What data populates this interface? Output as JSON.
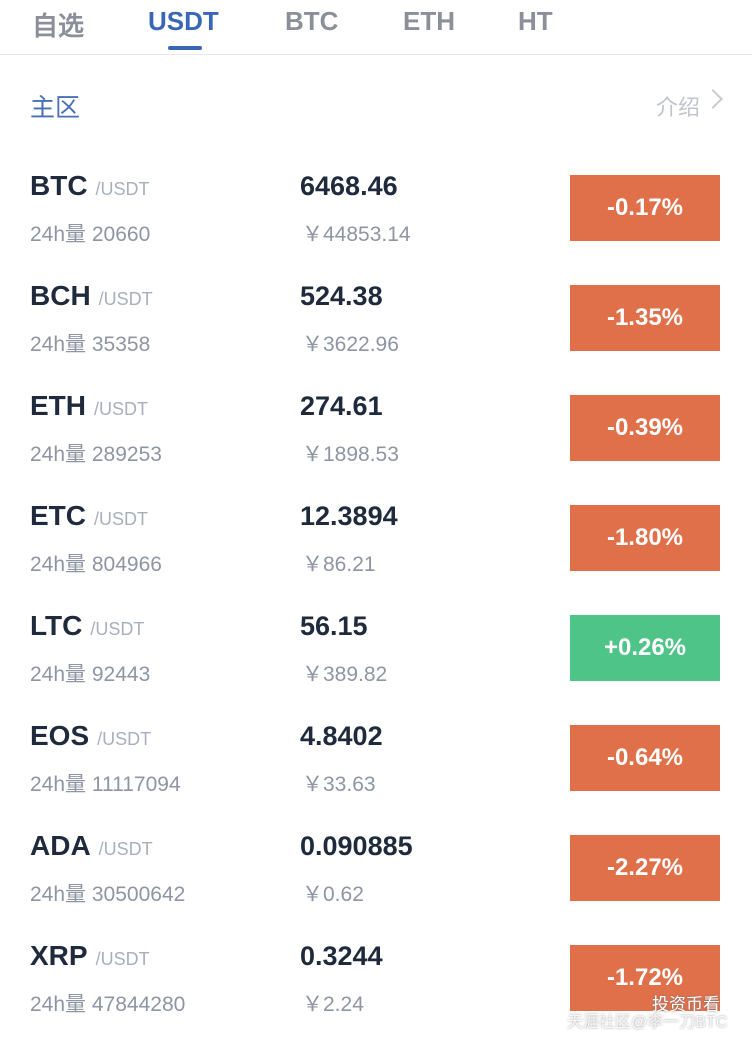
{
  "tabs": [
    "自选",
    "USDT",
    "BTC",
    "ETH",
    "HT"
  ],
  "active_tab": 1,
  "section": {
    "title": "主区",
    "link": "介绍"
  },
  "rows": [
    {
      "symbol": "BTC",
      "quote": "/USDT",
      "volume": "24h量 20660",
      "price": "6468.46",
      "cny": "￥44853.14",
      "change": "-0.17%",
      "color": "#e0704a"
    },
    {
      "symbol": "BCH",
      "quote": "/USDT",
      "volume": "24h量 35358",
      "price": "524.38",
      "cny": "￥3622.96",
      "change": "-1.35%",
      "color": "#e0704a"
    },
    {
      "symbol": "ETH",
      "quote": "/USDT",
      "volume": "24h量 289253",
      "price": "274.61",
      "cny": "￥1898.53",
      "change": "-0.39%",
      "color": "#e0704a"
    },
    {
      "symbol": "ETC",
      "quote": "/USDT",
      "volume": "24h量 804966",
      "price": "12.3894",
      "cny": "￥86.21",
      "change": "-1.80%",
      "color": "#e0704a"
    },
    {
      "symbol": "LTC",
      "quote": "/USDT",
      "volume": "24h量 92443",
      "price": "56.15",
      "cny": "￥389.82",
      "change": "+0.26%",
      "color": "#4fc489"
    },
    {
      "symbol": "EOS",
      "quote": "/USDT",
      "volume": "24h量 11117094",
      "price": "4.8402",
      "cny": "￥33.63",
      "change": "-0.64%",
      "color": "#e0704a"
    },
    {
      "symbol": "ADA",
      "quote": "/USDT",
      "volume": "24h量 30500642",
      "price": "0.090885",
      "cny": "￥0.62",
      "change": "-2.27%",
      "color": "#e0704a"
    },
    {
      "symbol": "XRP",
      "quote": "/USDT",
      "volume": "24h量 47844280",
      "price": "0.3244",
      "cny": "￥2.24",
      "change": "-1.72%",
      "color": "#e0704a"
    }
  ],
  "watermark": {
    "account": "投资币看",
    "source": "天涯社区@李一刀BTC"
  }
}
